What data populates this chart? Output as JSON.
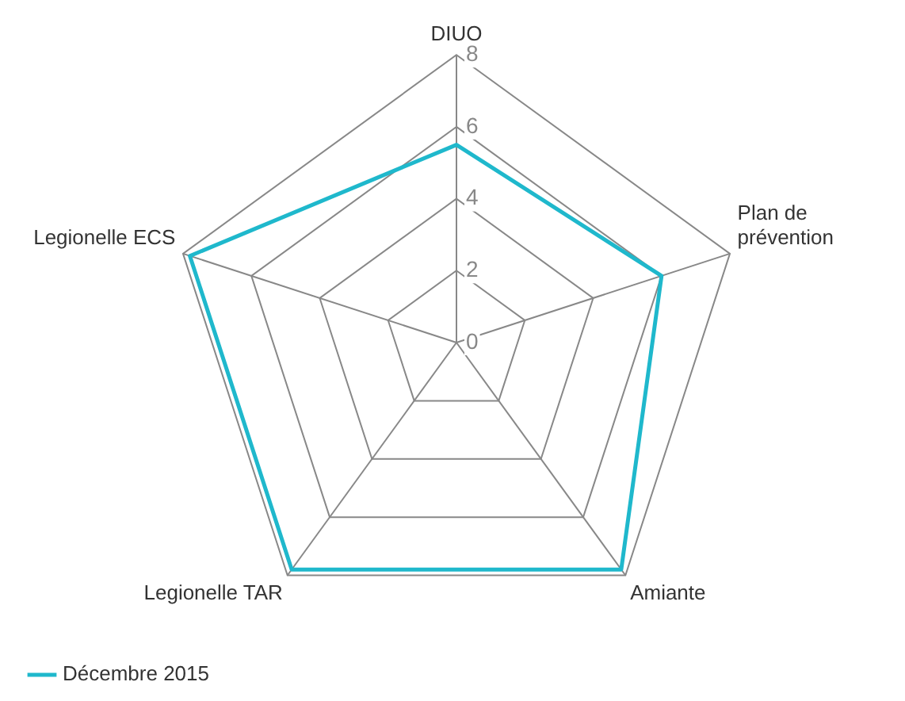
{
  "chart_data": {
    "type": "radar",
    "categories": [
      "DIUO",
      "Plan de prévention",
      "Amiante",
      "Legionelle TAR",
      "Legionelle ECS"
    ],
    "series": [
      {
        "name": "Décembre 2015",
        "color": "#1fb8cc",
        "values": [
          5.5,
          6,
          7.8,
          7.8,
          7.8
        ]
      }
    ],
    "ylim": [
      0,
      8
    ],
    "yticks": [
      0,
      2,
      4,
      6,
      8
    ],
    "grid": true,
    "legend": "bottom left",
    "marker": "none"
  }
}
